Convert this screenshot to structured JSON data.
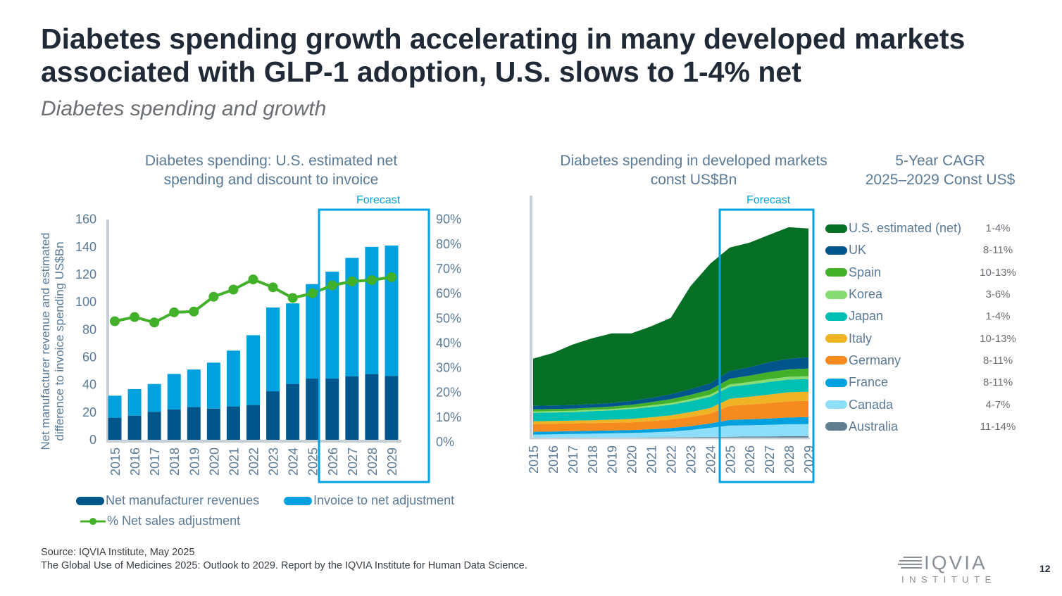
{
  "header": {
    "title": "Diabetes spending growth accelerating in many developed markets associated with GLP-1 adoption, U.S. slows to 1-4% net",
    "subtitle": "Diabetes spending and growth"
  },
  "left_chart": {
    "title_line1": "Diabetes spending: U.S. estimated net",
    "title_line2": "spending and discount to invoice",
    "forecast_label": "Forecast",
    "ylabel": "Net manufacturer revenue and estimated difference to invoice spending US$Bn"
  },
  "right_chart": {
    "title_line1": "Diabetes spending in developed markets",
    "title_line2": "const US$Bn",
    "forecast_label": "Forecast",
    "cagr_title_line1": "5-Year CAGR",
    "cagr_title_line2": "2025–2029 Const US$"
  },
  "chart_data": [
    {
      "type": "bar",
      "title": "Diabetes spending: U.S. estimated net spending and discount to invoice",
      "categories": [
        "2015",
        "2016",
        "2017",
        "2018",
        "2019",
        "2020",
        "2021",
        "2022",
        "2023",
        "2024",
        "2025",
        "2026",
        "2027",
        "2028",
        "2029"
      ],
      "ylim": [
        0,
        160
      ],
      "yticks": [
        "0",
        "20",
        "40",
        "60",
        "80",
        "100",
        "120",
        "140",
        "160"
      ],
      "y2lim": [
        0,
        90
      ],
      "y2ticks": [
        "0%",
        "10%",
        "20%",
        "30%",
        "40%",
        "50%",
        "60%",
        "70%",
        "80%",
        "90%"
      ],
      "forecast_from": "2025",
      "series": [
        {
          "name": "Net manufacturer revenues",
          "color": "#00558a",
          "values": [
            16,
            17.5,
            20.3,
            22,
            23.7,
            22.6,
            24.2,
            25.2,
            35.2,
            40.5,
            44.4,
            44.4,
            46,
            47.7,
            46.3
          ]
        },
        {
          "name": "Invoice to net adjustment",
          "color": "#00a1de",
          "values": [
            16,
            19.3,
            20.2,
            25.8,
            27.3,
            33.4,
            40.5,
            50.7,
            60.8,
            58.5,
            68.6,
            77.6,
            86,
            92.3,
            94.7
          ]
        },
        {
          "name": "% Net sales adjustment",
          "color": "#43b02a",
          "axis": "y2",
          "type": "line",
          "values": [
            48.8,
            50.5,
            48.3,
            52.4,
            52.7,
            58.7,
            61.6,
            65.7,
            62.5,
            58.2,
            60.1,
            63.3,
            64.9,
            65.4,
            66.6
          ]
        }
      ]
    },
    {
      "type": "area",
      "stacked": true,
      "title": "Diabetes spending in developed markets const US$Bn",
      "categories": [
        "2015",
        "2016",
        "2017",
        "2018",
        "2019",
        "2020",
        "2021",
        "2022",
        "2023",
        "2024",
        "2025",
        "2026",
        "2027",
        "2028",
        "2029"
      ],
      "ylim": [
        0,
        300
      ],
      "forecast_from": "2025",
      "note": "values estimated, relative scale (no y-axis shown)",
      "series": [
        {
          "name": "Australia",
          "color": "#5f7d8e",
          "cagr": "11-14%",
          "values": [
            0,
            0,
            0,
            0,
            0,
            0,
            0.2,
            0.4,
            0.6,
            0.8,
            1,
            1.3,
            1.5,
            1.8,
            2
          ]
        },
        {
          "name": "Canada",
          "color": "#8ddff9",
          "cagr": "4-7%",
          "values": [
            4,
            4.5,
            5,
            5.5,
            6,
            6.5,
            7,
            8,
            10,
            13,
            16,
            16,
            16.5,
            17,
            17
          ]
        },
        {
          "name": "France",
          "color": "#00a1de",
          "cagr": "8-11%",
          "values": [
            4,
            4,
            4,
            4,
            4,
            4,
            4.5,
            5,
            5.5,
            6,
            8,
            8.5,
            9,
            9.5,
            10
          ]
        },
        {
          "name": "Germany",
          "color": "#f58a1f",
          "cagr": "8-11%",
          "values": [
            11,
            11,
            11,
            11,
            11,
            11,
            11.5,
            12,
            13,
            14,
            20,
            21,
            22,
            23,
            23
          ]
        },
        {
          "name": "Italy",
          "color": "#f0b323",
          "cagr": "10-13%",
          "values": [
            4,
            4,
            4,
            4,
            4.5,
            5,
            5.5,
            6,
            7,
            8,
            10,
            11,
            12,
            13,
            13
          ]
        },
        {
          "name": "Japan",
          "color": "#00bfb3",
          "cagr": "1-4%",
          "values": [
            12,
            12,
            12,
            13,
            13,
            14,
            14.5,
            15,
            15.5,
            16,
            17,
            17.5,
            18,
            18,
            18
          ]
        },
        {
          "name": "Korea",
          "color": "#88dc73",
          "cagr": "3-6%",
          "values": [
            2,
            2,
            2,
            2,
            2,
            2,
            2.5,
            2.5,
            3,
            3,
            3.5,
            3.5,
            4,
            4,
            4
          ]
        },
        {
          "name": "Spain",
          "color": "#43b02a",
          "cagr": "10-13%",
          "values": [
            3,
            3,
            3,
            3,
            3.5,
            4,
            4.5,
            5.5,
            6,
            7,
            8,
            9,
            10,
            10.5,
            11
          ]
        },
        {
          "name": "UK",
          "color": "#00558a",
          "cagr": "8-11%",
          "values": [
            5,
            5,
            5,
            5,
            5,
            5.5,
            6,
            7,
            8,
            9,
            11,
            12,
            14,
            15,
            16
          ]
        },
        {
          "name": "U.S. estimated (net)",
          "color": "#046f25",
          "cagr": "1-4%",
          "values": [
            67,
            74.5,
            86,
            93.5,
            99,
            96,
            101.8,
            108.6,
            146.4,
            170,
            175.5,
            177,
            181,
            187,
            183
          ]
        }
      ]
    }
  ],
  "footer": {
    "source_line1": "Source: IQVIA Institute, May 2025",
    "source_line2": "The Global Use of Medicines 2025: Outlook to 2029. Report by the IQVIA Institute for Human Data Science.",
    "logo_text": "IQVIA",
    "logo_sub": "INSTITUTE",
    "page_number": "12"
  }
}
